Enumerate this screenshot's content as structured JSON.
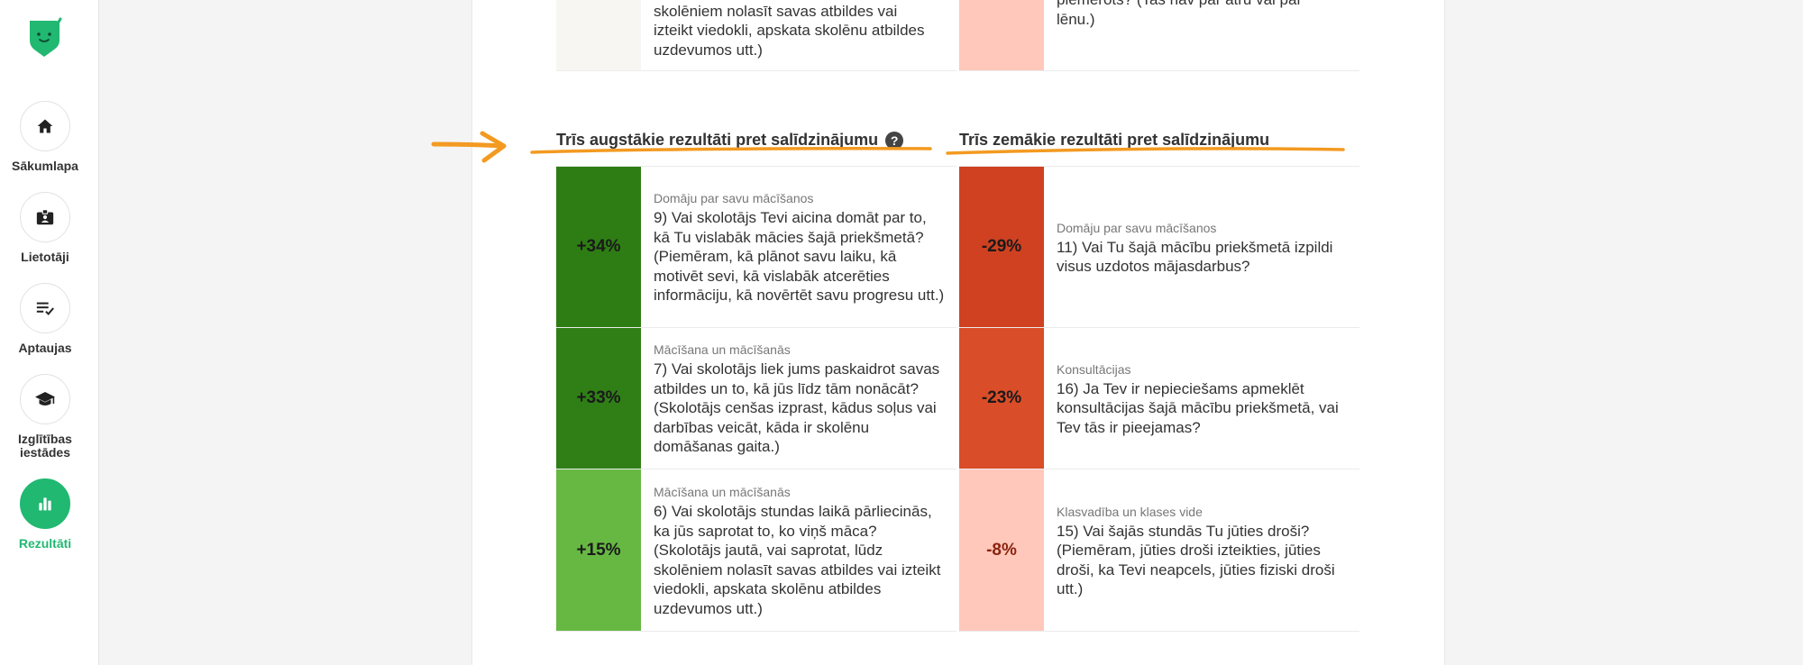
{
  "sidebar": {
    "items": [
      {
        "label": "Sākumlapa",
        "icon": "home-icon",
        "active": false
      },
      {
        "label": "Lietotāji",
        "icon": "users-badge-icon",
        "active": false
      },
      {
        "label": "Aptaujas",
        "icon": "survey-list-icon",
        "active": false
      },
      {
        "label": "Izglītības iestādes",
        "icon": "graduation-cap-icon",
        "active": false
      },
      {
        "label": "Rezultāti",
        "icon": "bar-chart-icon",
        "active": true
      }
    ]
  },
  "colors": {
    "brand": "#21b872",
    "green_dark": "#2e7d14",
    "green_mid": "#2f7f16",
    "green_light": "#66b843",
    "red_dark": "#cf4121",
    "red_mid": "#da4d29",
    "red_light": "#ffc8bb",
    "annotation": "#f39a21"
  },
  "top_partial": {
    "left_lines": [
      "skolēniem nolasīt savas atbildes vai",
      "izteikt viedokli, apskata skolēnu atbildes",
      "uzdevumos utt.)"
    ],
    "right_lines": [
      "piemērots? (Tas nav par ātru vai par",
      "lēnu.)"
    ]
  },
  "top_section": {
    "title": "Trīs augstākie rezultāti pret salīdzinājumu",
    "help": "?",
    "rows": [
      {
        "value": "+34%",
        "category": "Domāju par savu mācīšanos",
        "question": "9) Vai skolotājs Tevi aicina domāt par to, kā Tu vislabāk mācies šajā priekšmetā? (Piemēram, kā plānot savu laiku, kā motivēt sevi, kā vislabāk atcerēties informāciju, kā novērtēt savu progresu utt.)"
      },
      {
        "value": "+33%",
        "category": "Mācīšana un mācīšanās",
        "question": "7) Vai skolotājs liek jums paskaidrot savas atbildes un to, kā jūs līdz tām nonācāt? (Skolotājs cenšas izprast, kādus soļus vai darbības veicāt, kāda ir skolēnu domāšanas gaita.)"
      },
      {
        "value": "+15%",
        "category": "Mācīšana un mācīšanās",
        "question": "6) Vai skolotājs stundas laikā pārliecinās, ka jūs saprotat to, ko viņš māca? (Skolotājs jautā, vai saprotat, lūdz skolēniem nolasīt savas atbildes vai izteikt viedokli, apskata skolēnu atbildes uzdevumos utt.)"
      }
    ]
  },
  "bottom_section": {
    "title": "Trīs zemākie rezultāti pret salīdzinājumu",
    "rows": [
      {
        "value": "-29%",
        "category": "Domāju par savu mācīšanos",
        "question": "11) Vai Tu šajā mācību priekšmetā izpildi visus uzdotos mājasdarbus?"
      },
      {
        "value": "-23%",
        "category": "Konsultācijas",
        "question": "16) Ja Tev ir nepieciešams apmeklēt konsultācijas šajā mācību priekšmetā, vai Tev tās ir pieejamas?"
      },
      {
        "value": "-8%",
        "category": "Klasvadība un klases vide",
        "question": "15) Vai šajās stundās Tu jūties droši? (Piemēram, jūties droši izteikties, jūties droši, ka Tevi neapcels, jūties fiziski droši utt.)"
      }
    ]
  }
}
